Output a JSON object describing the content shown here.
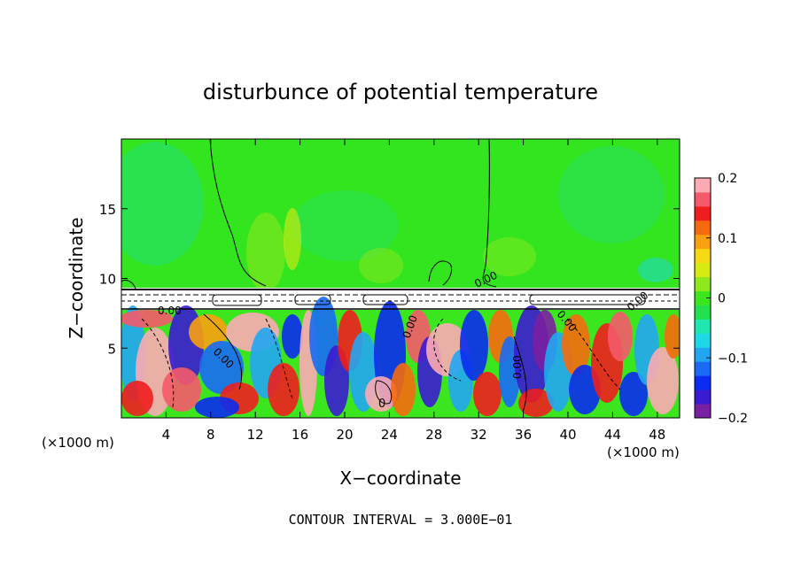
{
  "chart_data": {
    "type": "heatmap",
    "title": "disturbunce of potential temperature",
    "xlabel": "X−coordinate",
    "ylabel": "Z−coordinate",
    "x_unit_left": "(×1000 m)",
    "x_unit_right": "(×1000 m)",
    "xlim": [
      0,
      50
    ],
    "ylim": [
      0,
      20
    ],
    "x_ticks": [
      4,
      8,
      12,
      16,
      20,
      24,
      28,
      32,
      36,
      40,
      44,
      48
    ],
    "y_ticks": [
      5,
      10,
      15
    ],
    "colorbar": {
      "min": -0.2,
      "max": 0.2,
      "ticks": [
        {
          "value": 0.2,
          "label": "0.2"
        },
        {
          "value": 0.1,
          "label": "0.1"
        },
        {
          "value": 0,
          "label": "0"
        },
        {
          "value": -0.1,
          "label": "−0.1"
        },
        {
          "value": -0.2,
          "label": "−0.2"
        }
      ],
      "colors": [
        "#7a1fa2",
        "#3b1bd0",
        "#0a2bf0",
        "#1a6af5",
        "#22a6f2",
        "#1ed8e8",
        "#1ee8b0",
        "#22e050",
        "#3ce61e",
        "#8ee81e",
        "#d8ea14",
        "#f7d814",
        "#f8a010",
        "#f56a0e",
        "#ee1e1e",
        "#f55a6a",
        "#fcaab4"
      ]
    },
    "contour_labels": [
      "0.00",
      "0.00",
      "0.00",
      "0.00",
      "0.00",
      "0.00",
      "0.00",
      "0"
    ],
    "annotation": "CONTOUR INTERVAL = 3.000E−01"
  }
}
